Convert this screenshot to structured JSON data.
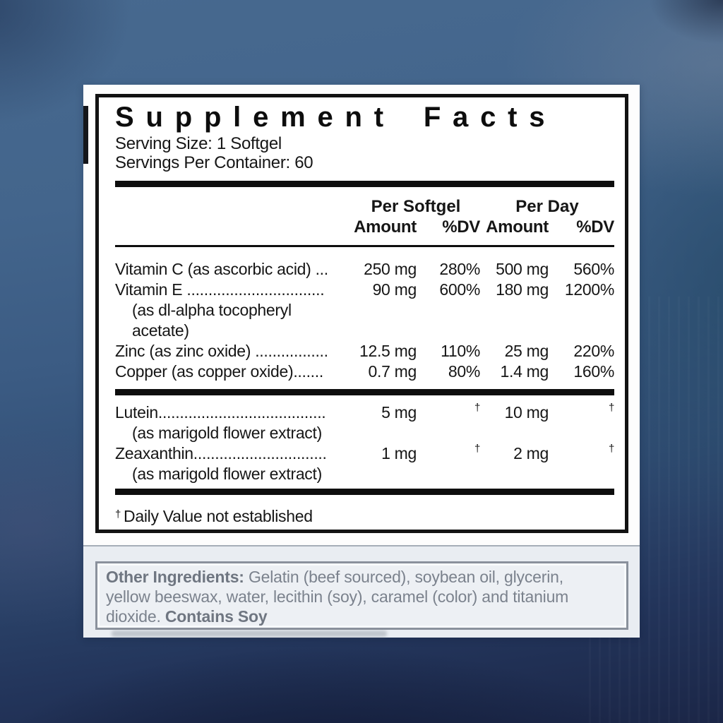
{
  "label": {
    "title": "Supplement Facts",
    "serving_size": "Serving Size: 1 Softgel",
    "servings_per_container": "Servings Per Container: 60",
    "groups": [
      "Per Softgel",
      "Per Day"
    ],
    "column_headers": [
      "Amount",
      "%DV",
      "Amount",
      "%DV"
    ],
    "rows": [
      {
        "name": "Vitamin C (as ascorbic acid) ...",
        "amount1": "250 mg",
        "dv1": "280%",
        "amount2": "500 mg",
        "dv2": "560%"
      },
      {
        "name": "Vitamin E ................................",
        "amount1": "90 mg",
        "dv1": "600%",
        "amount2": "180 mg",
        "dv2": "1200%",
        "sub": [
          "(as dl-alpha tocopheryl",
          "acetate)"
        ]
      },
      {
        "name": "Zinc (as zinc oxide) .................",
        "amount1": "12.5 mg",
        "dv1": "110%",
        "amount2": "25 mg",
        "dv2": "220%"
      },
      {
        "name": "Copper (as copper oxide).......",
        "amount1": "0.7 mg",
        "dv1": "80%",
        "amount2": "1.4 mg",
        "dv2": "160%"
      }
    ],
    "rows2": [
      {
        "name": "Lutein.......................................",
        "amount1": "5 mg",
        "dv1": "†",
        "amount2": "10 mg",
        "dv2": "†",
        "sub": [
          "(as marigold flower extract)"
        ]
      },
      {
        "name": "Zeaxanthin...............................",
        "amount1": "1 mg",
        "dv1": "†",
        "amount2": "2 mg",
        "dv2": "†",
        "sub": [
          "(as marigold flower extract)"
        ]
      }
    ],
    "footnote_symbol": "†",
    "footnote_text": "Daily Value not established"
  },
  "other_ingredients": {
    "bold_label": "Other Ingredients:",
    "line1_rest": " Gelatin (beef sourced), soybean oil, glycerin,",
    "line2": "yellow beeswax, water, lecithin (soy), caramel (color) and titanium",
    "line3_prefix": "dioxide. ",
    "line3_bold": "Contains Soy"
  },
  "colors": {
    "background_blue": "#3b5b83",
    "background_navy": "#1b2647",
    "card_white": "#fdfdfd",
    "rule_black": "#0e0e0e",
    "panel_gray": "#e9edf2",
    "gray_text": "#7b828d"
  }
}
